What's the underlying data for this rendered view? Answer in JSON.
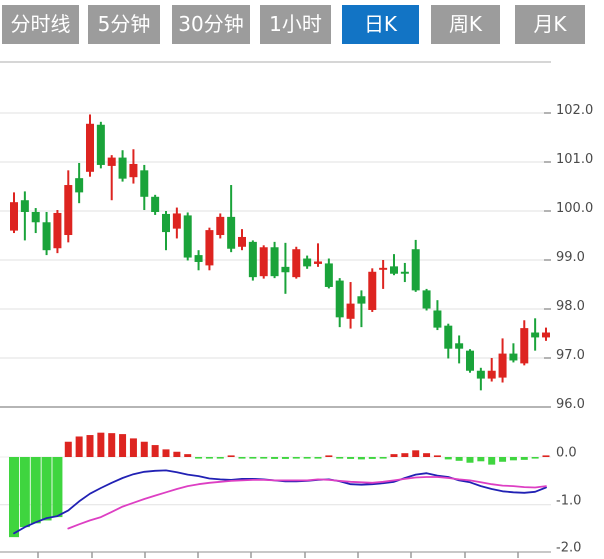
{
  "tabbar": {
    "items": [
      {
        "name": "tab-timeline",
        "label": "分时线",
        "active": false
      },
      {
        "name": "tab-5min",
        "label": "5分钟",
        "active": false
      },
      {
        "name": "tab-30min",
        "label": "30分钟",
        "active": false
      },
      {
        "name": "tab-1hour",
        "label": "1小时",
        "active": false
      },
      {
        "name": "tab-daily",
        "label": "日K",
        "active": true
      },
      {
        "name": "tab-weekly",
        "label": "周K",
        "active": false
      },
      {
        "name": "tab-monthly",
        "label": "月K",
        "active": false
      }
    ]
  },
  "colors": {
    "tab_bg": "#9c9c9c",
    "tab_active_bg": "#1274c5",
    "tab_text": "#ffffff",
    "candle_up": "#dd2420",
    "candle_down": "#1aa33a",
    "macd_bar_up": "#dd2420",
    "macd_bar_down": "#3fd53f",
    "dif_line": "#2121b4",
    "dea_line": "#dd3fc3",
    "grid": "#e2e2e2",
    "grid_zero": "#ececec",
    "axis": "#b5b5b5",
    "tick": "#9a9a9a",
    "label": "#4a4a4a",
    "top_border": "#c9c9c9"
  },
  "chart_data": {
    "type": "candlestick",
    "title": "",
    "xlabel": "",
    "ylabel": "",
    "legend": [],
    "panels": {
      "price": {
        "yticks_labels": [
          "102.0",
          "101.0",
          "100.0",
          "99.0",
          "98.0",
          "97.0",
          "96.0"
        ],
        "yticks_values": [
          102.0,
          101.0,
          100.0,
          99.0,
          98.0,
          97.0,
          96.0
        ],
        "ylim": [
          96.0,
          103.05
        ],
        "grid": "horizontal",
        "ohlc_order": [
          "open",
          "high",
          "low",
          "close"
        ],
        "candle_count": 50,
        "candles": [
          [
            99.6,
            100.38,
            99.55,
            100.18
          ],
          [
            100.22,
            100.4,
            99.4,
            99.98
          ],
          [
            99.98,
            100.06,
            99.55,
            99.77
          ],
          [
            99.77,
            99.98,
            99.1,
            99.2
          ],
          [
            99.24,
            100.02,
            99.14,
            99.96
          ],
          [
            99.51,
            100.83,
            99.36,
            100.53
          ],
          [
            100.67,
            100.98,
            100.16,
            100.38
          ],
          [
            100.8,
            101.97,
            100.7,
            101.78
          ],
          [
            101.76,
            101.82,
            100.87,
            100.94
          ],
          [
            100.92,
            101.14,
            100.22,
            101.09
          ],
          [
            101.09,
            101.24,
            100.6,
            100.66
          ],
          [
            100.69,
            101.26,
            100.56,
            100.96
          ],
          [
            100.83,
            100.94,
            100.02,
            100.29
          ],
          [
            100.29,
            100.33,
            99.92,
            99.98
          ],
          [
            99.94,
            100.0,
            99.2,
            99.57
          ],
          [
            99.64,
            100.07,
            99.44,
            99.95
          ],
          [
            99.91,
            99.97,
            98.99,
            99.05
          ],
          [
            99.1,
            99.2,
            98.79,
            98.96
          ],
          [
            98.89,
            99.66,
            98.79,
            99.61
          ],
          [
            99.51,
            99.95,
            99.44,
            99.88
          ],
          [
            99.88,
            100.53,
            99.16,
            99.23
          ],
          [
            99.27,
            99.63,
            99.2,
            99.47
          ],
          [
            99.37,
            99.4,
            98.58,
            98.65
          ],
          [
            98.67,
            99.3,
            98.62,
            99.26
          ],
          [
            99.26,
            99.37,
            98.63,
            98.67
          ],
          [
            98.86,
            99.35,
            98.31,
            98.75
          ],
          [
            98.65,
            99.27,
            98.62,
            99.22
          ],
          [
            99.03,
            99.09,
            98.82,
            98.87
          ],
          [
            98.92,
            99.34,
            98.86,
            98.97
          ],
          [
            98.93,
            99.03,
            98.42,
            98.45
          ],
          [
            98.58,
            98.63,
            97.63,
            97.83
          ],
          [
            97.8,
            98.55,
            97.6,
            98.11
          ],
          [
            98.26,
            98.38,
            97.63,
            98.11
          ],
          [
            97.98,
            98.83,
            97.94,
            98.76
          ],
          [
            98.8,
            99.0,
            98.41,
            98.84
          ],
          [
            98.87,
            99.12,
            98.69,
            98.72
          ],
          [
            98.76,
            98.94,
            98.55,
            98.72
          ],
          [
            99.22,
            99.41,
            98.35,
            98.38
          ],
          [
            98.38,
            98.41,
            97.97,
            98.01
          ],
          [
            97.97,
            98.18,
            97.57,
            97.62
          ],
          [
            97.66,
            97.7,
            96.99,
            97.19
          ],
          [
            97.3,
            97.46,
            96.89,
            97.19
          ],
          [
            97.15,
            97.18,
            96.7,
            96.74
          ],
          [
            96.74,
            96.8,
            96.34,
            96.58
          ],
          [
            96.58,
            97.0,
            96.52,
            96.74
          ],
          [
            96.6,
            97.4,
            96.5,
            97.09
          ],
          [
            97.09,
            97.3,
            96.91,
            96.95
          ],
          [
            96.89,
            97.77,
            96.85,
            97.61
          ],
          [
            97.52,
            97.81,
            97.15,
            97.42
          ],
          [
            97.42,
            97.62,
            97.35,
            97.52
          ]
        ]
      },
      "macd": {
        "yticks_labels": [
          "0.0",
          "-1.0",
          "-2.0"
        ],
        "yticks_values": [
          0.0,
          -1.0,
          -2.0
        ],
        "ylim": [
          -2.0,
          0.6
        ],
        "histogram": [
          -1.68,
          -1.47,
          -1.39,
          -1.33,
          -1.26,
          0.32,
          0.43,
          0.46,
          0.51,
          0.5,
          0.48,
          0.39,
          0.32,
          0.25,
          0.16,
          0.11,
          0.06,
          -0.02,
          -0.03,
          -0.03,
          0.02,
          -0.01,
          -0.01,
          -0.03,
          -0.04,
          -0.04,
          -0.03,
          -0.03,
          -0.01,
          0.03,
          -0.01,
          -0.04,
          -0.05,
          -0.04,
          -0.01,
          0.06,
          0.08,
          0.14,
          0.08,
          0.03,
          -0.05,
          -0.08,
          -0.12,
          -0.09,
          -0.16,
          -0.1,
          -0.07,
          -0.06,
          -0.02,
          0.03
        ],
        "dif": [
          -1.6,
          -1.47,
          -1.37,
          -1.28,
          -1.24,
          -1.12,
          -0.93,
          -0.77,
          -0.65,
          -0.54,
          -0.44,
          -0.36,
          -0.31,
          -0.29,
          -0.28,
          -0.32,
          -0.37,
          -0.4,
          -0.45,
          -0.47,
          -0.48,
          -0.46,
          -0.46,
          -0.47,
          -0.49,
          -0.51,
          -0.51,
          -0.5,
          -0.48,
          -0.47,
          -0.51,
          -0.57,
          -0.58,
          -0.57,
          -0.55,
          -0.52,
          -0.44,
          -0.37,
          -0.34,
          -0.39,
          -0.42,
          -0.49,
          -0.53,
          -0.61,
          -0.67,
          -0.72,
          -0.74,
          -0.75,
          -0.73,
          -0.64
        ],
        "dea": [
          null,
          null,
          null,
          null,
          null,
          -1.5,
          -1.41,
          -1.33,
          -1.26,
          -1.15,
          -1.04,
          -0.96,
          -0.88,
          -0.81,
          -0.74,
          -0.67,
          -0.61,
          -0.57,
          -0.54,
          -0.52,
          -0.5,
          -0.49,
          -0.48,
          -0.48,
          -0.49,
          -0.49,
          -0.49,
          -0.49,
          -0.47,
          -0.48,
          -0.5,
          -0.52,
          -0.53,
          -0.54,
          -0.52,
          -0.49,
          -0.46,
          -0.43,
          -0.42,
          -0.42,
          -0.44,
          -0.47,
          -0.49,
          -0.53,
          -0.57,
          -0.6,
          -0.61,
          -0.63,
          -0.64,
          -0.61
        ]
      }
    }
  }
}
